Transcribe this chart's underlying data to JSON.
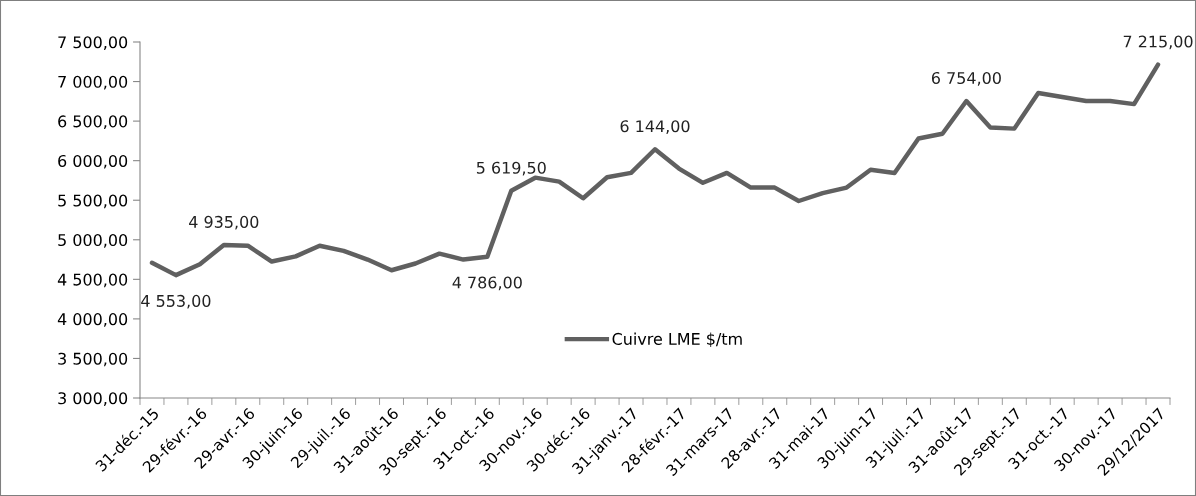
{
  "chart_data": {
    "type": "line",
    "categories": [
      "31-déc.-15",
      null,
      "29-févr.-16",
      null,
      "29-avr.-16",
      null,
      "30-juin-16",
      null,
      "29-juil.-16",
      null,
      "31-août-16",
      null,
      "30-sept.-16",
      null,
      "31-oct.-16",
      null,
      "30-nov.-16",
      null,
      "30-déc.-16",
      null,
      "31-janv.-17",
      null,
      "28-févr.-17",
      null,
      "31-mars-17",
      null,
      "28-avr.-17",
      null,
      "31-mai-17",
      null,
      "30-juin-17",
      null,
      "31-juil.-17",
      null,
      "31-août-17",
      null,
      "29-sept.-17",
      null,
      "31-oct.-17",
      null,
      "30-nov.-17",
      null,
      "29/12/2017"
    ],
    "series": [
      {
        "name": "Cuivre LME $/tm",
        "color": "#606060",
        "values": [
          4710,
          4553,
          4690,
          4935,
          4925,
          4725,
          4790,
          4925,
          4860,
          4750,
          4615,
          4700,
          4825,
          4750,
          4786,
          5619.5,
          5785,
          5735,
          5525,
          5790,
          5845,
          6144,
          5900,
          5720,
          5845,
          5660,
          5660,
          5490,
          5590,
          5660,
          5885,
          5845,
          6280,
          6340,
          6754,
          6420,
          6405,
          6855,
          6805,
          6755,
          6755,
          6715,
          7215
        ],
        "value_labels": [
          null,
          "4 553,00",
          null,
          "4 935,00",
          null,
          null,
          null,
          null,
          null,
          null,
          null,
          null,
          null,
          null,
          "4 786,00",
          "5 619,50",
          null,
          null,
          null,
          null,
          null,
          "6 144,00",
          null,
          null,
          null,
          null,
          null,
          null,
          null,
          null,
          null,
          null,
          null,
          null,
          "6 754,00",
          null,
          null,
          null,
          null,
          null,
          null,
          null,
          "7 215,00"
        ]
      }
    ],
    "ylim": [
      3000,
      7500
    ],
    "yticks": [
      {
        "value": 3000,
        "label": "3 000,00"
      },
      {
        "value": 3500,
        "label": "3 500,00"
      },
      {
        "value": 4000,
        "label": "4 000,00"
      },
      {
        "value": 4500,
        "label": "4 500,00"
      },
      {
        "value": 5000,
        "label": "5 000,00"
      },
      {
        "value": 5500,
        "label": "5 500,00"
      },
      {
        "value": 6000,
        "label": "6 000,00"
      },
      {
        "value": 6500,
        "label": "6 500,00"
      },
      {
        "value": 7000,
        "label": "7 000,00"
      },
      {
        "value": 7500,
        "label": "7 500,00"
      }
    ],
    "grid": false,
    "legend": "bottom",
    "marker": "none",
    "line_style": "solid"
  }
}
